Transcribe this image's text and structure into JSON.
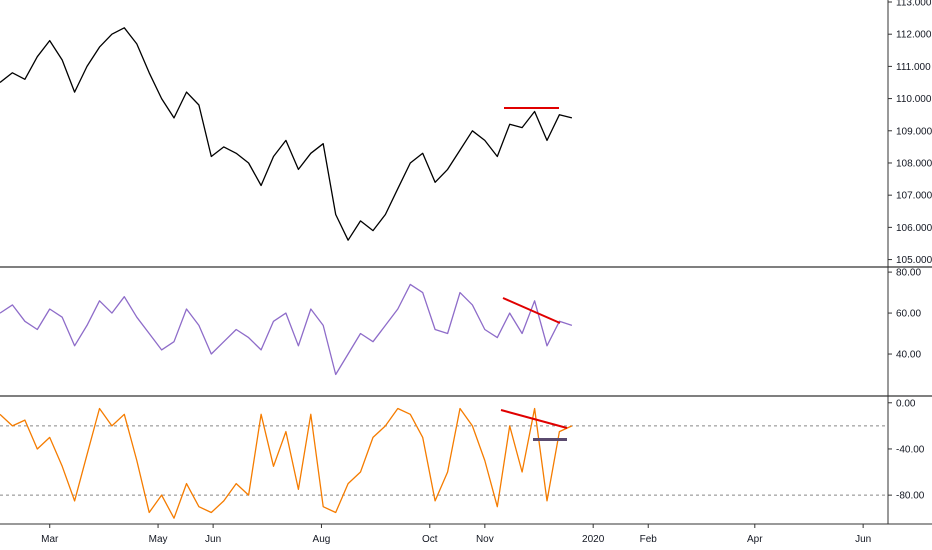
{
  "colors": {
    "background": "#ffffff",
    "price": "#000000",
    "rsi": "#8e6cc9",
    "williams": "#f57c00",
    "annotation": "#e00000",
    "marker": "#5a4a6e",
    "separator": "#333333",
    "level_line": "#888888"
  },
  "x_axis": {
    "labels": [
      "Mar",
      "May",
      "Jun",
      "Aug",
      "Oct",
      "Nov",
      "2020",
      "Feb",
      "Apr",
      "Jun"
    ],
    "label_dates": [
      "2019-03-01",
      "2019-05-01",
      "2019-06-01",
      "2019-08-01",
      "2019-10-01",
      "2019-11-01",
      "2020-01-01",
      "2020-02-01",
      "2020-04-01",
      "2020-06-01"
    ],
    "start_date": "2019-02-01",
    "end_date": "2020-06-15"
  },
  "chart_data": [
    {
      "type": "line",
      "name": "price",
      "ylim": [
        104.8,
        113.0
      ],
      "y_ticks": [
        "105.000",
        "106.000",
        "107.000",
        "108.000",
        "109.000",
        "110.000",
        "111.000",
        "112.000",
        "113.000"
      ],
      "series": [
        {
          "x": [
            "2019-02-01",
            "2019-02-08",
            "2019-02-15",
            "2019-02-22",
            "2019-03-01",
            "2019-03-08",
            "2019-03-15",
            "2019-03-22",
            "2019-03-29",
            "2019-04-05",
            "2019-04-12",
            "2019-04-19",
            "2019-04-26",
            "2019-05-03",
            "2019-05-10",
            "2019-05-17",
            "2019-05-24",
            "2019-05-31",
            "2019-06-07",
            "2019-06-14",
            "2019-06-21",
            "2019-06-28",
            "2019-07-05",
            "2019-07-12",
            "2019-07-19",
            "2019-07-26",
            "2019-08-02",
            "2019-08-09",
            "2019-08-16",
            "2019-08-23",
            "2019-08-30",
            "2019-09-06",
            "2019-09-13",
            "2019-09-20",
            "2019-09-27",
            "2019-10-04",
            "2019-10-11",
            "2019-10-18",
            "2019-10-25",
            "2019-11-01",
            "2019-11-08",
            "2019-11-15",
            "2019-11-22",
            "2019-11-29",
            "2019-12-06",
            "2019-12-13",
            "2019-12-20"
          ],
          "values": [
            110.5,
            110.8,
            110.6,
            111.3,
            111.8,
            111.2,
            110.2,
            111.0,
            111.6,
            112.0,
            112.2,
            111.7,
            110.8,
            110.0,
            109.4,
            110.2,
            109.8,
            108.2,
            108.5,
            108.3,
            108.0,
            107.3,
            108.2,
            108.7,
            107.8,
            108.3,
            108.6,
            106.4,
            105.6,
            106.2,
            105.9,
            106.4,
            107.2,
            108.0,
            108.3,
            107.4,
            107.8,
            108.4,
            109.0,
            108.7,
            108.2,
            109.2,
            109.1,
            109.6,
            108.7,
            109.5,
            109.4
          ]
        }
      ]
    },
    {
      "type": "line",
      "name": "rsi",
      "ylim": [
        20,
        82
      ],
      "y_ticks": [
        "40.00",
        "60.00",
        "80.00"
      ],
      "series": [
        {
          "x": [
            "2019-02-01",
            "2019-02-08",
            "2019-02-15",
            "2019-02-22",
            "2019-03-01",
            "2019-03-08",
            "2019-03-15",
            "2019-03-22",
            "2019-03-29",
            "2019-04-05",
            "2019-04-12",
            "2019-04-19",
            "2019-04-26",
            "2019-05-03",
            "2019-05-10",
            "2019-05-17",
            "2019-05-24",
            "2019-05-31",
            "2019-06-07",
            "2019-06-14",
            "2019-06-21",
            "2019-06-28",
            "2019-07-05",
            "2019-07-12",
            "2019-07-19",
            "2019-07-26",
            "2019-08-02",
            "2019-08-09",
            "2019-08-16",
            "2019-08-23",
            "2019-08-30",
            "2019-09-06",
            "2019-09-13",
            "2019-09-20",
            "2019-09-27",
            "2019-10-04",
            "2019-10-11",
            "2019-10-18",
            "2019-10-25",
            "2019-11-01",
            "2019-11-08",
            "2019-11-15",
            "2019-11-22",
            "2019-11-29",
            "2019-12-06",
            "2019-12-13",
            "2019-12-20"
          ],
          "values": [
            60,
            64,
            56,
            52,
            62,
            58,
            44,
            54,
            66,
            60,
            68,
            58,
            50,
            42,
            46,
            62,
            54,
            40,
            46,
            52,
            48,
            42,
            56,
            60,
            44,
            62,
            54,
            30,
            40,
            50,
            46,
            54,
            62,
            74,
            70,
            52,
            50,
            70,
            64,
            52,
            48,
            60,
            50,
            66,
            44,
            56,
            54
          ]
        }
      ]
    },
    {
      "type": "line",
      "name": "williams",
      "ylim": [
        -105,
        5
      ],
      "y_ticks": [
        "0.00",
        "-40.00",
        "-80.00"
      ],
      "series": [
        {
          "x": [
            "2019-02-01",
            "2019-02-08",
            "2019-02-15",
            "2019-02-22",
            "2019-03-01",
            "2019-03-08",
            "2019-03-15",
            "2019-03-22",
            "2019-03-29",
            "2019-04-05",
            "2019-04-12",
            "2019-04-19",
            "2019-04-26",
            "2019-05-03",
            "2019-05-10",
            "2019-05-17",
            "2019-05-24",
            "2019-05-31",
            "2019-06-07",
            "2019-06-14",
            "2019-06-21",
            "2019-06-28",
            "2019-07-05",
            "2019-07-12",
            "2019-07-19",
            "2019-07-26",
            "2019-08-02",
            "2019-08-09",
            "2019-08-16",
            "2019-08-23",
            "2019-08-30",
            "2019-09-06",
            "2019-09-13",
            "2019-09-20",
            "2019-09-27",
            "2019-10-04",
            "2019-10-11",
            "2019-10-18",
            "2019-10-25",
            "2019-11-01",
            "2019-11-08",
            "2019-11-15",
            "2019-11-22",
            "2019-11-29",
            "2019-12-06",
            "2019-12-13",
            "2019-12-20"
          ],
          "values": [
            -10,
            -20,
            -15,
            -40,
            -30,
            -55,
            -85,
            -45,
            -5,
            -20,
            -10,
            -50,
            -95,
            -80,
            -100,
            -70,
            -90,
            -95,
            -85,
            -70,
            -80,
            -10,
            -55,
            -25,
            -75,
            -10,
            -90,
            -95,
            -70,
            -60,
            -30,
            -20,
            -5,
            -10,
            -30,
            -85,
            -60,
            -5,
            -20,
            -50,
            -90,
            -20,
            -60,
            -5,
            -85,
            -25,
            -20
          ]
        }
      ]
    }
  ]
}
